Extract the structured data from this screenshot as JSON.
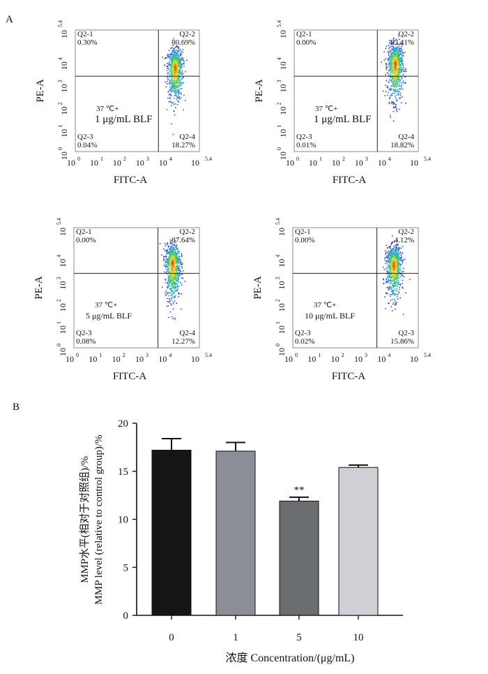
{
  "panel_labels": {
    "a": "A",
    "b": "B"
  },
  "chart_data": [
    {
      "type": "scatter",
      "xlabel": "FITC-A",
      "ylabel": "PE-A",
      "x_ticks": [
        "10",
        "10",
        "10",
        "10",
        "10",
        "10"
      ],
      "x_tick_exp": [
        "0",
        "1",
        "2",
        "3",
        "4",
        "5.4"
      ],
      "y_ticks": [
        "10",
        "10",
        "10",
        "10",
        "10",
        "10"
      ],
      "y_tick_exp": [
        "0",
        "1",
        "2",
        "3",
        "4",
        "5.4"
      ],
      "condition": [
        "37 ℃+",
        "1 μg/mL BLF"
      ],
      "quadrants": [
        {
          "name": "Q2-1",
          "value": "0.30%"
        },
        {
          "name": "Q2-2",
          "value": "80.69%"
        },
        {
          "name": "Q2-3",
          "value": "0.04%"
        },
        {
          "name": "Q2-4",
          "value": "18.27%"
        }
      ]
    },
    {
      "type": "scatter",
      "xlabel": "FITC-A",
      "ylabel": "PE-A",
      "x_ticks": [
        "10",
        "10",
        "10",
        "10",
        "10",
        "10"
      ],
      "x_tick_exp": [
        "0",
        "1",
        "2",
        "3",
        "4",
        "5.4"
      ],
      "y_ticks": [
        "10",
        "10",
        "10",
        "10",
        "10",
        "10"
      ],
      "y_tick_exp": [
        "0",
        "1",
        "2",
        "3",
        "4",
        "5.4"
      ],
      "condition": [
        "37 ℃+",
        "1 μg/mL BLF"
      ],
      "quadrants": [
        {
          "name": "Q2-1",
          "value": "0.00%"
        },
        {
          "name": "Q2-2",
          "value": "83.41%"
        },
        {
          "name": "Q2-3",
          "value": "0.01%"
        },
        {
          "name": "Q2-4",
          "value": "18.82%"
        }
      ]
    },
    {
      "type": "scatter",
      "xlabel": "FITC-A",
      "ylabel": "PE-A",
      "x_ticks": [
        "10",
        "10",
        "10",
        "10",
        "10",
        "10"
      ],
      "x_tick_exp": [
        "0",
        "1",
        "2",
        "3",
        "4",
        "5.4"
      ],
      "y_ticks": [
        "10",
        "10",
        "10",
        "10",
        "10",
        "10"
      ],
      "y_tick_exp": [
        "0",
        "1",
        "2",
        "3",
        "4",
        "5.4"
      ],
      "condition": [
        "37 ℃+",
        "5 μg/mL BLF"
      ],
      "quadrants": [
        {
          "name": "Q2-1",
          "value": "0.00%"
        },
        {
          "name": "Q2-2",
          "value": "87.64%"
        },
        {
          "name": "Q2-3",
          "value": "0.08%"
        },
        {
          "name": "Q2-4",
          "value": "12.27%"
        }
      ]
    },
    {
      "type": "scatter",
      "xlabel": "FITC-A",
      "ylabel": "PE-A",
      "x_ticks": [
        "10",
        "10",
        "10",
        "10",
        "10",
        "10"
      ],
      "x_tick_exp": [
        "0",
        "1",
        "2",
        "3",
        "4",
        "5.4"
      ],
      "y_ticks": [
        "10",
        "10",
        "10",
        "10",
        "10",
        "10"
      ],
      "y_tick_exp": [
        "0",
        "1",
        "2",
        "3",
        "4",
        "5.4"
      ],
      "condition": [
        "37 ℃+",
        "10 μg/mL BLF"
      ],
      "quadrants": [
        {
          "name": "Q2-1",
          "value": "0.00%"
        },
        {
          "name": "Q2-2",
          "value": "4.12%"
        },
        {
          "name": "Q2-3",
          "value": "0.02%"
        },
        {
          "name": "Q2-3",
          "value": "15.86%"
        }
      ]
    },
    {
      "type": "bar",
      "categories": [
        "0",
        "1",
        "5",
        "10"
      ],
      "values": [
        17.2,
        17.1,
        11.9,
        15.4
      ],
      "errors": [
        1.2,
        0.9,
        0.4,
        0.25
      ],
      "significance": [
        "",
        "",
        "**",
        ""
      ],
      "bar_colors": [
        "#151515",
        "#8b8d97",
        "#6b6e70",
        "#cfd0d6"
      ],
      "ylabel": [
        "MMP水平(相对于对照组)/%",
        "MMP level (relative to control group)/%"
      ],
      "xlabel": "浓度  Concentration/(μg/mL)",
      "ylim": [
        0,
        20
      ],
      "y_ticks": [
        0,
        5,
        10,
        15,
        20
      ]
    }
  ]
}
